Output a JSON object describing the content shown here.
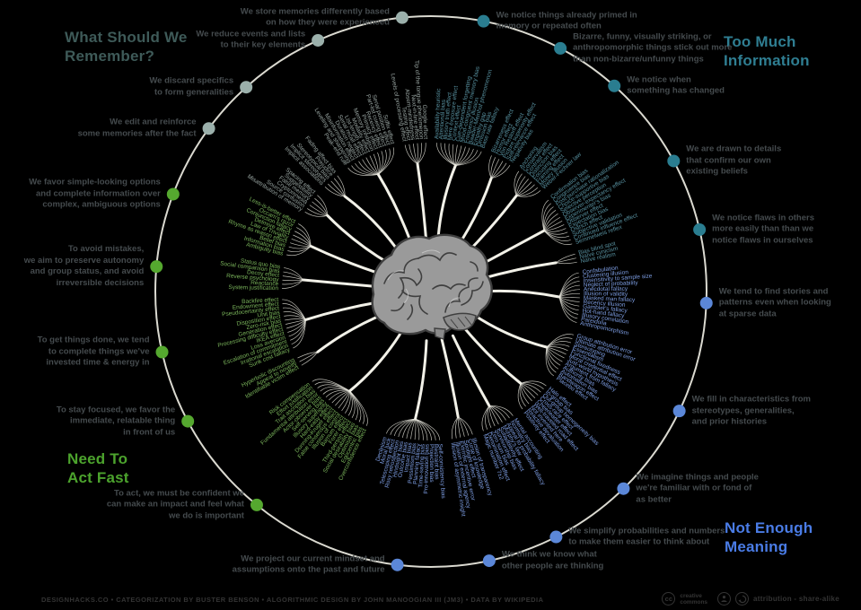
{
  "quadrants": [
    {
      "id": "tmi",
      "heading": "Too Much\nInformation",
      "heading_color": "#2f7e92",
      "dot_color": "#2a7d90",
      "strand_color": "#57909f"
    },
    {
      "id": "nem",
      "heading": "Not Enough\nMeaning",
      "heading_color": "#4a7ce6",
      "dot_color": "#5b87d8",
      "strand_color": "#7d9de2"
    },
    {
      "id": "ntaf",
      "heading": "Need To\nAct Fast",
      "heading_color": "#4ca32d",
      "dot_color": "#55a82f",
      "strand_color": "#79b35a"
    },
    {
      "id": "wswr",
      "heading": "What Should We\nRemember?",
      "heading_color": "#3e5a58",
      "dot_color": "#9bb0ab",
      "strand_color": "#97a3a0"
    }
  ],
  "clusters": [
    {
      "id": "primed-memory",
      "quadrant": "tmi",
      "angle": 11,
      "label": "We notice things already primed in\nmemory or repeated often",
      "biases": [
        "Availability heuristic",
        "Attentional bias",
        "Illusory truth effect",
        "Mere exposure effect",
        "Context effect",
        "Cue-dependent forgetting",
        "Mood-congruent memory bias",
        "Frequency illusion",
        "Baader-Meinhof phenomenon",
        "Empathy gap",
        "Omission bias",
        "Base rate fallacy"
      ]
    },
    {
      "id": "bizarre-sticks-out",
      "quadrant": "tmi",
      "angle": 28,
      "label": "Bizarre, funny, visually striking, or\nanthropomorphic things stick out more\nthan non-bizarre/unfunny things",
      "biases": [
        "Bizarreness effect",
        "Humor effect",
        "Von Restorff effect",
        "Picture superiority effect",
        "Self-relevance effect",
        "Negativity bias"
      ]
    },
    {
      "id": "something-changed",
      "quadrant": "tmi",
      "angle": 41.7,
      "label": "We notice when\nsomething has changed",
      "biases": [
        "Anchoring",
        "Conservatism",
        "Contrast effect",
        "Distinction bias",
        "Focusing effect",
        "Framing effect",
        "Money illusion",
        "Weber-Fechner law"
      ]
    },
    {
      "id": "confirm-beliefs",
      "quadrant": "tmi",
      "angle": 61.7,
      "label": "We are drawn to details\nthat confirm our own\nexisting beliefs",
      "biases": [
        "Confirmation bias",
        "Congruence bias",
        "Post-purchase rationalization",
        "Choice-supportive bias",
        "Selective perception",
        "Observer-expectancy effect",
        "Experimenter's bias",
        "Observer effect",
        "Expectation bias",
        "Ostrich effect",
        "Subjective validation",
        "Continued influence effect",
        "Semmelweis reflex"
      ]
    },
    {
      "id": "flaws-in-others",
      "quadrant": "tmi",
      "angle": 77,
      "label": "We notice flaws in others\nmore easily than than we\nnotice flaws in ourselves",
      "biases": [
        "Bias blind spot",
        "Naïve cynicism",
        "Naïve realism"
      ]
    },
    {
      "id": "stories-patterns",
      "quadrant": "nem",
      "angle": 92.4,
      "label": "We tend to find stories and\npatterns even when looking\nat sparse data",
      "biases": [
        "Confabulation",
        "Clustering illusion",
        "Insensitivity to sample size",
        "Neglect of probability",
        "Anecdotal fallacy",
        "Illusion of validity",
        "Masked man fallacy",
        "Recency illusion",
        "Gambler's fallacy",
        "Hot-hand fallacy",
        "Illusory correlation",
        "Pareidolia",
        "Anthropomorphism"
      ]
    },
    {
      "id": "stereotypes",
      "quadrant": "nem",
      "angle": 115.7,
      "label": "We fill in characteristics from\nstereotypes, generalities,\nand prior histories",
      "biases": [
        "Group attribution error",
        "Ultimate attribution error",
        "Stereotyping",
        "Essentialism",
        "Functional fixedness",
        "Moral credential effect",
        "Just-world hypothesis",
        "Argument from fallacy",
        "Authority bias",
        "Automation bias",
        "Bandwagon effect",
        "Placebo effect"
      ]
    },
    {
      "id": "familiar-fond",
      "quadrant": "nem",
      "angle": 135.7,
      "label": "We imagine things and people\nwe're familiar with or fond of\nas better",
      "biases": [
        "Halo effect",
        "In-group bias",
        "Out-group homogeneity bias",
        "Cross-race effect",
        "Cheerleader effect",
        "Well-traveled road effect",
        "Not invented here",
        "Reactive devaluation",
        "Positivity effect"
      ]
    },
    {
      "id": "simplify-numbers",
      "quadrant": "nem",
      "angle": 153,
      "label": "We simplify probabilities and numbers\nto make them easier to think about",
      "biases": [
        "Mental accounting",
        "Normalcy bias",
        "Appeal to probability fallacy",
        "Murphy's law",
        "Subadditivity effect",
        "Survivorship bias",
        "Zero sum bias",
        "Denomination effect",
        "Magic number 7±2"
      ]
    },
    {
      "id": "others-thinking",
      "quadrant": "nem",
      "angle": 167.8,
      "label": "We think we know what\nother people are thinking",
      "biases": [
        "Illusion of transparency",
        "Curse of knowledge",
        "Spotlight effect",
        "Extrinsic incentive error",
        "Illusion of external agency",
        "Illusion of asymmetric insight"
      ]
    },
    {
      "id": "project-mindset",
      "quadrant": "nem",
      "angle": 187,
      "label": "We project our current mindset and\nassumptions onto the past and future",
      "biases": [
        "Self-consistency bias",
        "Restraint bias",
        "Projection bias",
        "Pro-innovation bias",
        "Time-saving bias",
        "Planning fallacy",
        "Pessimism bias",
        "Impact bias",
        "Outcome bias",
        "Hindsight bias",
        "Rosy retrospection",
        "Telescoping effect",
        "Moral luck",
        "Declinism"
      ]
    },
    {
      "id": "confident-impact",
      "quadrant": "ntaf",
      "angle": 219.2,
      "label": "To act, we must be confident we\ncan make an impact and feel what\nwe do is important",
      "biases": [
        "Overconfidence effect",
        "Egocentric bias",
        "Optimism bias",
        "Social desirability bias",
        "Third-person effect",
        "Forer effect",
        "Barnum effect",
        "Illusion of control",
        "False consensus effect",
        "Dunning-Kruger effect",
        "Hard-easy effect",
        "Illusory superiority",
        "Self-serving bias",
        "Actor-observer bias",
        "Fundamental attribution error",
        "Trait ascription bias",
        "Effort justification",
        "Risk compensation"
      ]
    },
    {
      "id": "stay-focused",
      "quadrant": "ntaf",
      "angle": 241.9,
      "label": "To stay focused, we favor the\nimmediate, relatable thing\nin front of us",
      "biases": [
        "Identifiable victim effect",
        "Appeal to novelty",
        "Hyperbolic discounting"
      ]
    },
    {
      "id": "invested",
      "quadrant": "ntaf",
      "angle": 257.3,
      "label": "To get things done, we tend\nto complete things we've\ninvested time & energy in",
      "biases": [
        "Sunk cost fallacy",
        "Irrational escalation",
        "Escalation of commitment",
        "Loss aversion",
        "IKEA effect",
        "Processing difficulty effect",
        "Generation effect",
        "Zero-risk bias",
        "Disposition effect",
        "Unit bias",
        "Pseudocertainty effect",
        "Endowment effect",
        "Backfire effect"
      ]
    },
    {
      "id": "preserve-status",
      "quadrant": "ntaf",
      "angle": 275.2,
      "label": "To avoid mistakes,\nwe aim to preserve autonomy\nand group status, and avoid\nirreversible decisions",
      "biases": [
        "System justification",
        "Reactance",
        "Reverse psychology",
        "Decoy effect",
        "Social comparison bias",
        "Status quo bias"
      ]
    },
    {
      "id": "simple-options",
      "quadrant": "ntaf",
      "angle": 290.7,
      "label": "We favor simple-looking options\nand complete information over\ncomplex, ambiguous options",
      "biases": [
        "Ambiguity bias",
        "Information bias",
        "Belief bias",
        "Rhyme as reason effect",
        "Law of Triviality",
        "Delmore effect",
        "Conjunction fallacy",
        "Occam's razor",
        "Less-is-better effect"
      ]
    },
    {
      "id": "edit-reinforce",
      "quadrant": "wswr",
      "angle": 306.3,
      "label": "We edit and reinforce\nsome memories after the fact",
      "biases": [
        "Misattribution of memory",
        "Source confusion",
        "Cryptomnesia",
        "False memory",
        "Suggestibility",
        "Spacing effect"
      ]
    },
    {
      "id": "discard-specifics",
      "quadrant": "wswr",
      "angle": 317.9,
      "label": "We discard specifics\nto form generalities",
      "biases": [
        "Implicit associations",
        "Implicit stereotypes",
        "Stereotypical bias",
        "Prejudice",
        "Fading affect bias"
      ]
    },
    {
      "id": "reduce-events",
      "quadrant": "wswr",
      "angle": 335.8,
      "label": "We reduce events and lists\nto their key elements",
      "biases": [
        "Peak–end rule",
        "Leveling and sharpening",
        "Misinformation effect",
        "Duration neglect",
        "Serial recall effect",
        "List-length effect",
        "Modality effect",
        "Memory inhibition",
        "Primacy effect",
        "Recency effect",
        "Part-list cueing effect",
        "Serial position effect",
        "Suffix effect"
      ]
    },
    {
      "id": "store-memories",
      "quadrant": "wswr",
      "angle": 354,
      "label": "We store memories differently based\non how they were experienced",
      "biases": [
        "Levels of processing effect",
        "Testing effect",
        "Absent-mindedness",
        "Next-in-line effect",
        "Tip of the tongue phenomenon",
        "Google effect"
      ]
    }
  ],
  "footer": {
    "credits": "DESIGNHACKS.CO  •  CATEGORIZATION BY BUSTER BENSON  •  ALGORITHMIC DESIGN BY JOHN MANOOGIAN III (JM3)  •  DATA BY WIKIPEDIA",
    "license_brand": "creative\ncommons",
    "license_label": "attribution - share-alike"
  },
  "icons": {
    "cc": "cc-icon",
    "attribution": "attribution-person-icon",
    "share_alike": "share-alike-icon"
  },
  "center_illustration": "brain"
}
